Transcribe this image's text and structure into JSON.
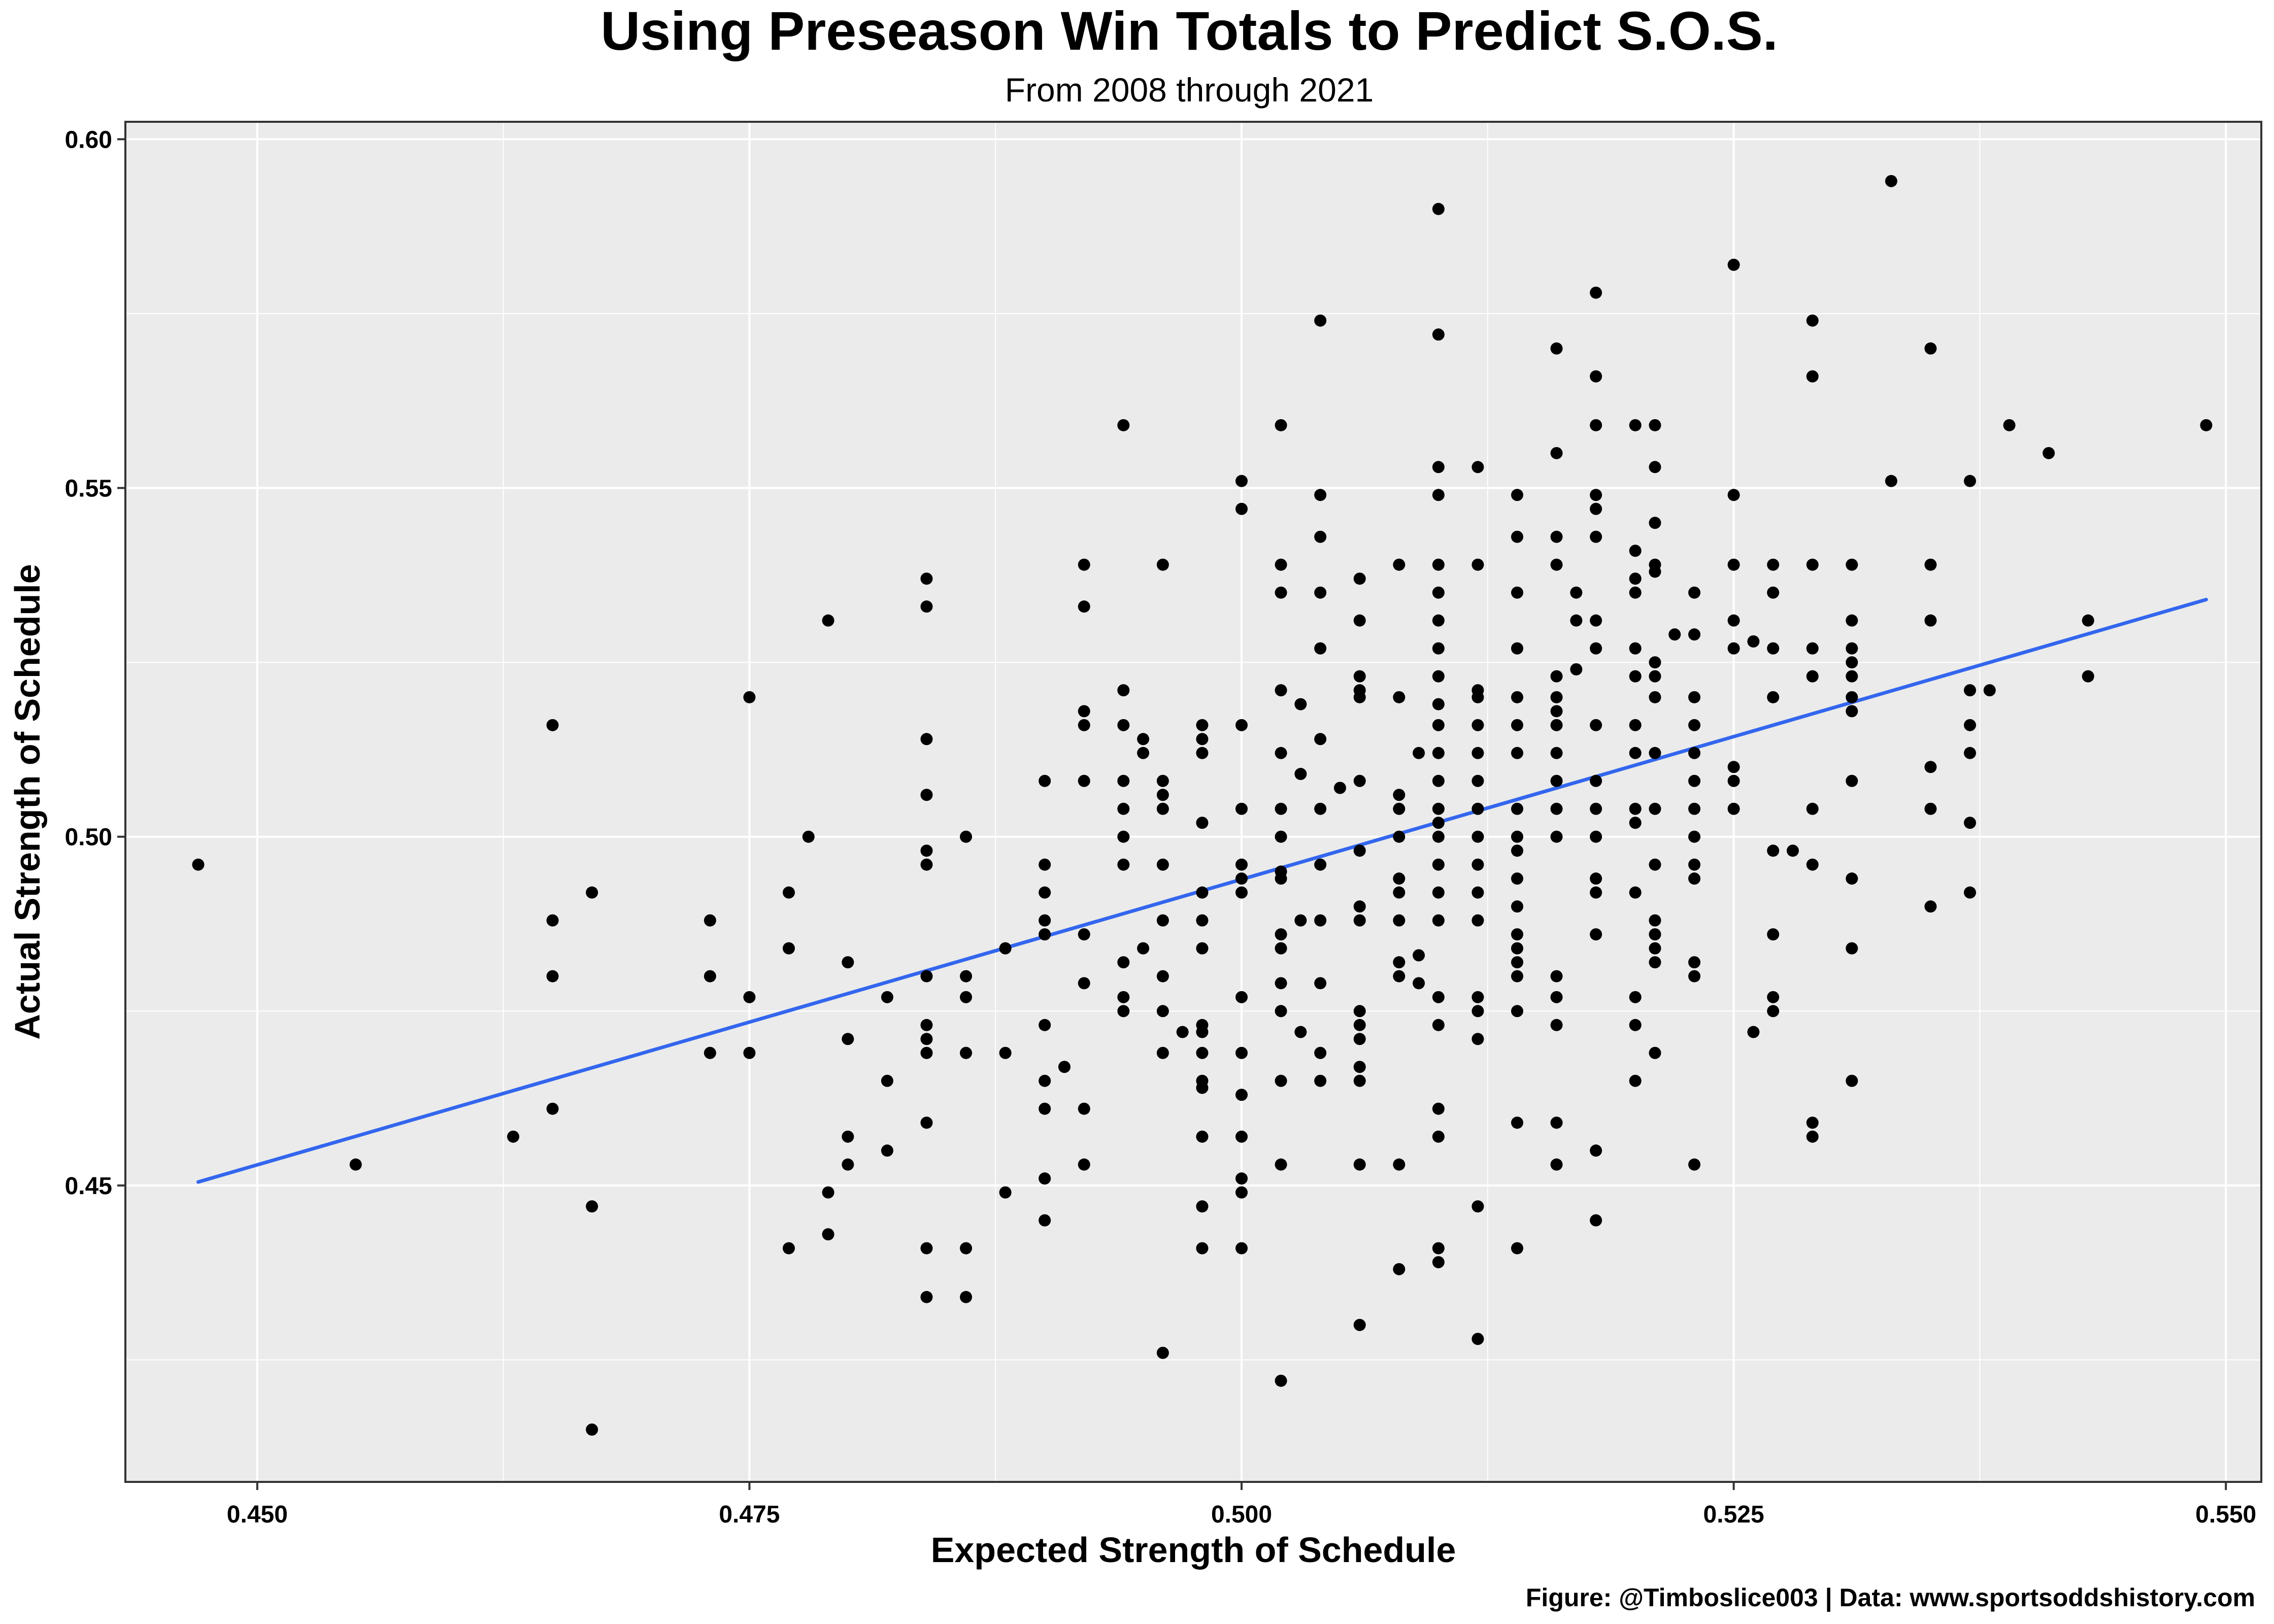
{
  "chart_data": {
    "type": "scatter",
    "title": "Using Preseason Win Totals to Predict S.O.S.",
    "subtitle": "From 2008 through 2021",
    "xlabel": "Expected Strength of Schedule",
    "ylabel": "Actual Strength of Schedule",
    "caption": "Figure: @Timboslice003 | Data: www.sportsoddshistory.com",
    "xlim": [
      0.4433,
      0.5518
    ],
    "ylim": [
      0.4075,
      0.6025
    ],
    "x_ticks": [
      0.45,
      0.475,
      0.5,
      0.525,
      0.55
    ],
    "x_tick_labels": [
      "0.450",
      "0.475",
      "0.500",
      "0.525",
      "0.550"
    ],
    "y_ticks": [
      0.45,
      0.5,
      0.55,
      0.6
    ],
    "y_tick_labels": [
      "0.45",
      "0.50",
      "0.55",
      "0.60"
    ],
    "grid": true,
    "colors": {
      "panel": "#ebebeb",
      "grid": "#ffffff",
      "points": "#000000",
      "trend": "#3366ee"
    },
    "trend_line": {
      "x": [
        0.447,
        0.549
      ],
      "y": [
        0.4505,
        0.534
      ]
    },
    "points": [
      [
        0.447,
        0.496
      ],
      [
        0.455,
        0.453
      ],
      [
        0.463,
        0.457
      ],
      [
        0.465,
        0.516
      ],
      [
        0.465,
        0.488
      ],
      [
        0.465,
        0.48
      ],
      [
        0.465,
        0.461
      ],
      [
        0.467,
        0.492
      ],
      [
        0.467,
        0.447
      ],
      [
        0.467,
        0.415
      ],
      [
        0.473,
        0.488
      ],
      [
        0.473,
        0.48
      ],
      [
        0.473,
        0.469
      ],
      [
        0.475,
        0.52
      ],
      [
        0.475,
        0.477
      ],
      [
        0.475,
        0.469
      ],
      [
        0.477,
        0.492
      ],
      [
        0.477,
        0.484
      ],
      [
        0.477,
        0.441
      ],
      [
        0.478,
        0.5
      ],
      [
        0.479,
        0.531
      ],
      [
        0.479,
        0.449
      ],
      [
        0.479,
        0.443
      ],
      [
        0.48,
        0.482
      ],
      [
        0.48,
        0.471
      ],
      [
        0.48,
        0.457
      ],
      [
        0.48,
        0.453
      ],
      [
        0.482,
        0.477
      ],
      [
        0.482,
        0.465
      ],
      [
        0.482,
        0.455
      ],
      [
        0.484,
        0.537
      ],
      [
        0.484,
        0.533
      ],
      [
        0.484,
        0.514
      ],
      [
        0.484,
        0.506
      ],
      [
        0.484,
        0.498
      ],
      [
        0.484,
        0.496
      ],
      [
        0.484,
        0.48
      ],
      [
        0.484,
        0.473
      ],
      [
        0.484,
        0.471
      ],
      [
        0.484,
        0.469
      ],
      [
        0.484,
        0.459
      ],
      [
        0.484,
        0.441
      ],
      [
        0.484,
        0.434
      ],
      [
        0.486,
        0.5
      ],
      [
        0.486,
        0.48
      ],
      [
        0.486,
        0.477
      ],
      [
        0.486,
        0.469
      ],
      [
        0.486,
        0.441
      ],
      [
        0.486,
        0.434
      ],
      [
        0.488,
        0.484
      ],
      [
        0.488,
        0.469
      ],
      [
        0.488,
        0.449
      ],
      [
        0.49,
        0.508
      ],
      [
        0.49,
        0.496
      ],
      [
        0.49,
        0.492
      ],
      [
        0.49,
        0.488
      ],
      [
        0.49,
        0.486
      ],
      [
        0.49,
        0.473
      ],
      [
        0.49,
        0.465
      ],
      [
        0.49,
        0.461
      ],
      [
        0.49,
        0.451
      ],
      [
        0.49,
        0.445
      ],
      [
        0.491,
        0.467
      ],
      [
        0.492,
        0.539
      ],
      [
        0.492,
        0.533
      ],
      [
        0.492,
        0.518
      ],
      [
        0.492,
        0.516
      ],
      [
        0.492,
        0.508
      ],
      [
        0.492,
        0.486
      ],
      [
        0.492,
        0.479
      ],
      [
        0.492,
        0.461
      ],
      [
        0.492,
        0.453
      ],
      [
        0.494,
        0.559
      ],
      [
        0.494,
        0.521
      ],
      [
        0.494,
        0.516
      ],
      [
        0.494,
        0.508
      ],
      [
        0.494,
        0.504
      ],
      [
        0.494,
        0.5
      ],
      [
        0.494,
        0.496
      ],
      [
        0.494,
        0.482
      ],
      [
        0.494,
        0.477
      ],
      [
        0.494,
        0.475
      ],
      [
        0.495,
        0.514
      ],
      [
        0.495,
        0.512
      ],
      [
        0.495,
        0.484
      ],
      [
        0.496,
        0.539
      ],
      [
        0.496,
        0.508
      ],
      [
        0.496,
        0.506
      ],
      [
        0.496,
        0.504
      ],
      [
        0.496,
        0.496
      ],
      [
        0.496,
        0.488
      ],
      [
        0.496,
        0.48
      ],
      [
        0.496,
        0.475
      ],
      [
        0.496,
        0.469
      ],
      [
        0.496,
        0.426
      ],
      [
        0.497,
        0.472
      ],
      [
        0.498,
        0.516
      ],
      [
        0.498,
        0.514
      ],
      [
        0.498,
        0.512
      ],
      [
        0.498,
        0.502
      ],
      [
        0.498,
        0.492
      ],
      [
        0.498,
        0.488
      ],
      [
        0.498,
        0.484
      ],
      [
        0.498,
        0.473
      ],
      [
        0.498,
        0.472
      ],
      [
        0.498,
        0.469
      ],
      [
        0.498,
        0.465
      ],
      [
        0.498,
        0.464
      ],
      [
        0.498,
        0.457
      ],
      [
        0.498,
        0.447
      ],
      [
        0.498,
        0.441
      ],
      [
        0.5,
        0.516
      ],
      [
        0.5,
        0.504
      ],
      [
        0.5,
        0.496
      ],
      [
        0.5,
        0.494
      ],
      [
        0.5,
        0.492
      ],
      [
        0.5,
        0.477
      ],
      [
        0.5,
        0.469
      ],
      [
        0.5,
        0.463
      ],
      [
        0.5,
        0.457
      ],
      [
        0.5,
        0.451
      ],
      [
        0.5,
        0.449
      ],
      [
        0.5,
        0.441
      ],
      [
        0.5,
        0.551
      ],
      [
        0.5,
        0.547
      ],
      [
        0.502,
        0.559
      ],
      [
        0.502,
        0.539
      ],
      [
        0.502,
        0.535
      ],
      [
        0.502,
        0.521
      ],
      [
        0.502,
        0.512
      ],
      [
        0.502,
        0.504
      ],
      [
        0.502,
        0.5
      ],
      [
        0.502,
        0.495
      ],
      [
        0.502,
        0.494
      ],
      [
        0.502,
        0.486
      ],
      [
        0.502,
        0.484
      ],
      [
        0.502,
        0.479
      ],
      [
        0.502,
        0.475
      ],
      [
        0.502,
        0.465
      ],
      [
        0.502,
        0.453
      ],
      [
        0.502,
        0.422
      ],
      [
        0.503,
        0.519
      ],
      [
        0.503,
        0.509
      ],
      [
        0.503,
        0.488
      ],
      [
        0.503,
        0.472
      ],
      [
        0.504,
        0.574
      ],
      [
        0.504,
        0.549
      ],
      [
        0.504,
        0.543
      ],
      [
        0.504,
        0.535
      ],
      [
        0.504,
        0.527
      ],
      [
        0.504,
        0.514
      ],
      [
        0.504,
        0.504
      ],
      [
        0.504,
        0.496
      ],
      [
        0.504,
        0.488
      ],
      [
        0.504,
        0.479
      ],
      [
        0.504,
        0.469
      ],
      [
        0.504,
        0.465
      ],
      [
        0.505,
        0.507
      ],
      [
        0.506,
        0.537
      ],
      [
        0.506,
        0.531
      ],
      [
        0.506,
        0.523
      ],
      [
        0.506,
        0.521
      ],
      [
        0.506,
        0.52
      ],
      [
        0.506,
        0.508
      ],
      [
        0.506,
        0.498
      ],
      [
        0.506,
        0.49
      ],
      [
        0.506,
        0.488
      ],
      [
        0.506,
        0.475
      ],
      [
        0.506,
        0.473
      ],
      [
        0.506,
        0.471
      ],
      [
        0.506,
        0.467
      ],
      [
        0.506,
        0.465
      ],
      [
        0.506,
        0.453
      ],
      [
        0.506,
        0.43
      ],
      [
        0.508,
        0.539
      ],
      [
        0.508,
        0.52
      ],
      [
        0.508,
        0.506
      ],
      [
        0.508,
        0.504
      ],
      [
        0.508,
        0.5
      ],
      [
        0.508,
        0.494
      ],
      [
        0.508,
        0.492
      ],
      [
        0.508,
        0.488
      ],
      [
        0.508,
        0.482
      ],
      [
        0.508,
        0.48
      ],
      [
        0.508,
        0.453
      ],
      [
        0.508,
        0.438
      ],
      [
        0.509,
        0.512
      ],
      [
        0.509,
        0.483
      ],
      [
        0.509,
        0.479
      ],
      [
        0.51,
        0.59
      ],
      [
        0.51,
        0.572
      ],
      [
        0.51,
        0.553
      ],
      [
        0.51,
        0.549
      ],
      [
        0.51,
        0.539
      ],
      [
        0.51,
        0.535
      ],
      [
        0.51,
        0.531
      ],
      [
        0.51,
        0.527
      ],
      [
        0.51,
        0.523
      ],
      [
        0.51,
        0.519
      ],
      [
        0.51,
        0.516
      ],
      [
        0.51,
        0.512
      ],
      [
        0.51,
        0.508
      ],
      [
        0.51,
        0.504
      ],
      [
        0.51,
        0.502
      ],
      [
        0.51,
        0.5
      ],
      [
        0.51,
        0.496
      ],
      [
        0.51,
        0.492
      ],
      [
        0.51,
        0.488
      ],
      [
        0.51,
        0.477
      ],
      [
        0.51,
        0.473
      ],
      [
        0.51,
        0.461
      ],
      [
        0.51,
        0.457
      ],
      [
        0.51,
        0.441
      ],
      [
        0.51,
        0.439
      ],
      [
        0.512,
        0.553
      ],
      [
        0.512,
        0.539
      ],
      [
        0.512,
        0.521
      ],
      [
        0.512,
        0.52
      ],
      [
        0.512,
        0.516
      ],
      [
        0.512,
        0.512
      ],
      [
        0.512,
        0.508
      ],
      [
        0.512,
        0.504
      ],
      [
        0.512,
        0.5
      ],
      [
        0.512,
        0.496
      ],
      [
        0.512,
        0.492
      ],
      [
        0.512,
        0.488
      ],
      [
        0.512,
        0.477
      ],
      [
        0.512,
        0.475
      ],
      [
        0.512,
        0.471
      ],
      [
        0.512,
        0.447
      ],
      [
        0.512,
        0.428
      ],
      [
        0.514,
        0.549
      ],
      [
        0.514,
        0.543
      ],
      [
        0.514,
        0.535
      ],
      [
        0.514,
        0.527
      ],
      [
        0.514,
        0.52
      ],
      [
        0.514,
        0.516
      ],
      [
        0.514,
        0.512
      ],
      [
        0.514,
        0.504
      ],
      [
        0.514,
        0.5
      ],
      [
        0.514,
        0.498
      ],
      [
        0.514,
        0.494
      ],
      [
        0.514,
        0.49
      ],
      [
        0.514,
        0.486
      ],
      [
        0.514,
        0.484
      ],
      [
        0.514,
        0.482
      ],
      [
        0.514,
        0.48
      ],
      [
        0.514,
        0.475
      ],
      [
        0.514,
        0.459
      ],
      [
        0.514,
        0.441
      ],
      [
        0.516,
        0.57
      ],
      [
        0.516,
        0.555
      ],
      [
        0.516,
        0.543
      ],
      [
        0.516,
        0.539
      ],
      [
        0.516,
        0.523
      ],
      [
        0.516,
        0.52
      ],
      [
        0.516,
        0.518
      ],
      [
        0.516,
        0.516
      ],
      [
        0.516,
        0.512
      ],
      [
        0.516,
        0.508
      ],
      [
        0.516,
        0.504
      ],
      [
        0.516,
        0.5
      ],
      [
        0.516,
        0.48
      ],
      [
        0.516,
        0.477
      ],
      [
        0.516,
        0.473
      ],
      [
        0.516,
        0.459
      ],
      [
        0.516,
        0.453
      ],
      [
        0.517,
        0.535
      ],
      [
        0.517,
        0.524
      ],
      [
        0.517,
        0.531
      ],
      [
        0.518,
        0.578
      ],
      [
        0.518,
        0.566
      ],
      [
        0.518,
        0.559
      ],
      [
        0.518,
        0.549
      ],
      [
        0.518,
        0.547
      ],
      [
        0.518,
        0.543
      ],
      [
        0.518,
        0.531
      ],
      [
        0.518,
        0.527
      ],
      [
        0.518,
        0.516
      ],
      [
        0.518,
        0.508
      ],
      [
        0.518,
        0.504
      ],
      [
        0.518,
        0.5
      ],
      [
        0.518,
        0.494
      ],
      [
        0.518,
        0.492
      ],
      [
        0.518,
        0.486
      ],
      [
        0.518,
        0.455
      ],
      [
        0.518,
        0.445
      ],
      [
        0.52,
        0.559
      ],
      [
        0.52,
        0.541
      ],
      [
        0.52,
        0.537
      ],
      [
        0.52,
        0.535
      ],
      [
        0.52,
        0.527
      ],
      [
        0.52,
        0.523
      ],
      [
        0.52,
        0.516
      ],
      [
        0.52,
        0.512
      ],
      [
        0.52,
        0.504
      ],
      [
        0.52,
        0.502
      ],
      [
        0.52,
        0.492
      ],
      [
        0.52,
        0.477
      ],
      [
        0.52,
        0.473
      ],
      [
        0.52,
        0.465
      ],
      [
        0.521,
        0.559
      ],
      [
        0.521,
        0.553
      ],
      [
        0.521,
        0.545
      ],
      [
        0.521,
        0.539
      ],
      [
        0.521,
        0.538
      ],
      [
        0.521,
        0.525
      ],
      [
        0.521,
        0.523
      ],
      [
        0.521,
        0.52
      ],
      [
        0.521,
        0.512
      ],
      [
        0.521,
        0.504
      ],
      [
        0.521,
        0.496
      ],
      [
        0.521,
        0.488
      ],
      [
        0.521,
        0.486
      ],
      [
        0.521,
        0.484
      ],
      [
        0.521,
        0.482
      ],
      [
        0.521,
        0.469
      ],
      [
        0.522,
        0.529
      ],
      [
        0.523,
        0.535
      ],
      [
        0.523,
        0.529
      ],
      [
        0.523,
        0.52
      ],
      [
        0.523,
        0.516
      ],
      [
        0.523,
        0.512
      ],
      [
        0.523,
        0.508
      ],
      [
        0.523,
        0.504
      ],
      [
        0.523,
        0.5
      ],
      [
        0.523,
        0.496
      ],
      [
        0.523,
        0.494
      ],
      [
        0.523,
        0.482
      ],
      [
        0.523,
        0.48
      ],
      [
        0.523,
        0.453
      ],
      [
        0.525,
        0.582
      ],
      [
        0.525,
        0.549
      ],
      [
        0.525,
        0.539
      ],
      [
        0.525,
        0.531
      ],
      [
        0.525,
        0.527
      ],
      [
        0.525,
        0.51
      ],
      [
        0.525,
        0.508
      ],
      [
        0.525,
        0.504
      ],
      [
        0.526,
        0.528
      ],
      [
        0.526,
        0.472
      ],
      [
        0.527,
        0.539
      ],
      [
        0.527,
        0.535
      ],
      [
        0.527,
        0.527
      ],
      [
        0.527,
        0.52
      ],
      [
        0.527,
        0.498
      ],
      [
        0.527,
        0.486
      ],
      [
        0.527,
        0.477
      ],
      [
        0.527,
        0.475
      ],
      [
        0.528,
        0.498
      ],
      [
        0.529,
        0.574
      ],
      [
        0.529,
        0.566
      ],
      [
        0.529,
        0.539
      ],
      [
        0.529,
        0.527
      ],
      [
        0.529,
        0.523
      ],
      [
        0.529,
        0.504
      ],
      [
        0.529,
        0.496
      ],
      [
        0.529,
        0.459
      ],
      [
        0.529,
        0.457
      ],
      [
        0.531,
        0.539
      ],
      [
        0.531,
        0.531
      ],
      [
        0.531,
        0.527
      ],
      [
        0.531,
        0.525
      ],
      [
        0.531,
        0.523
      ],
      [
        0.531,
        0.52
      ],
      [
        0.531,
        0.518
      ],
      [
        0.531,
        0.508
      ],
      [
        0.531,
        0.494
      ],
      [
        0.531,
        0.484
      ],
      [
        0.531,
        0.465
      ],
      [
        0.533,
        0.594
      ],
      [
        0.533,
        0.551
      ],
      [
        0.535,
        0.57
      ],
      [
        0.535,
        0.539
      ],
      [
        0.535,
        0.531
      ],
      [
        0.535,
        0.51
      ],
      [
        0.535,
        0.504
      ],
      [
        0.535,
        0.49
      ],
      [
        0.537,
        0.551
      ],
      [
        0.537,
        0.521
      ],
      [
        0.537,
        0.516
      ],
      [
        0.537,
        0.512
      ],
      [
        0.537,
        0.502
      ],
      [
        0.537,
        0.492
      ],
      [
        0.538,
        0.521
      ],
      [
        0.539,
        0.559
      ],
      [
        0.541,
        0.555
      ],
      [
        0.543,
        0.531
      ],
      [
        0.543,
        0.523
      ],
      [
        0.549,
        0.559
      ]
    ]
  }
}
